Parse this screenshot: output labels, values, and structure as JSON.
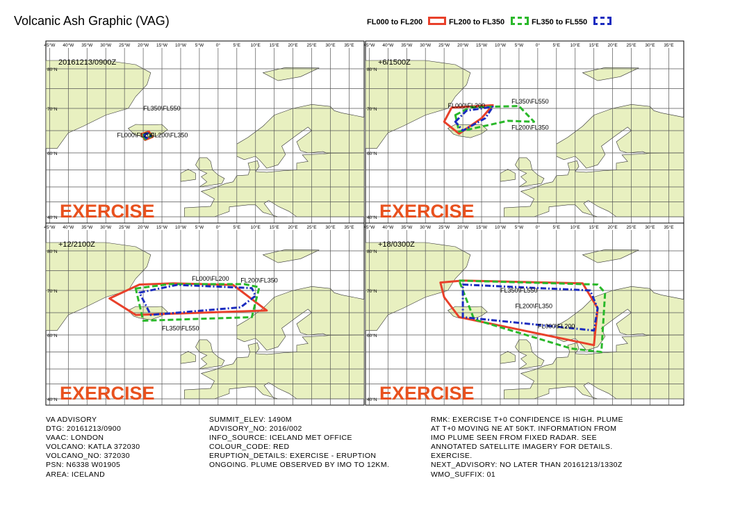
{
  "title": "Volcanic Ash Graphic (VAG)",
  "legend": [
    {
      "label": "FL000 to FL200",
      "color": "#e8402a",
      "style": "solid"
    },
    {
      "label": "FL200 to FL350",
      "color": "#2ab82a",
      "style": "dash"
    },
    {
      "label": "FL350 to FL550",
      "color": "#1a2bbf",
      "style": "dashdot"
    }
  ],
  "colors": {
    "land": "#e8f0c0",
    "sea": "#ffffff",
    "grid": "#555555",
    "exercise": "#e8511e"
  },
  "longitude_ticks": [
    "45°W",
    "40°W",
    "35°W",
    "30°W",
    "25°W",
    "20°W",
    "15°W",
    "10°W",
    "5°W",
    "0°",
    "5°E",
    "10°E",
    "15°E",
    "20°E",
    "25°E",
    "30°E",
    "35°E"
  ],
  "latitude_ticks": [
    "80°N",
    "70°N",
    "60°N",
    "40°N"
  ],
  "panels": [
    {
      "time": "20161213/0900Z",
      "watermark": "EXERCISE",
      "labels": [
        {
          "text": "FL350\\FL550",
          "lon": -20,
          "lat": 69.5
        },
        {
          "text": "FL000\\FL200",
          "lon": -27,
          "lat": 63.5
        },
        {
          "text": "FL200\\FL350",
          "lon": -18,
          "lat": 63.5
        }
      ],
      "plumes": [
        {
          "level": "FL000 to FL200",
          "points": [
            [
              -20.5,
              64.2
            ],
            [
              -18.5,
              64.8
            ],
            [
              -17.5,
              63.6
            ],
            [
              -19.5,
              62.9
            ]
          ]
        },
        {
          "level": "FL200 to FL350",
          "points": [
            [
              -20.2,
              64.0
            ],
            [
              -18.6,
              64.6
            ],
            [
              -17.8,
              63.7
            ],
            [
              -19.4,
              63.1
            ]
          ]
        },
        {
          "level": "FL350 to FL550",
          "points": [
            [
              -19.9,
              64.0
            ],
            [
              -18.8,
              64.4
            ],
            [
              -18.1,
              63.8
            ],
            [
              -19.2,
              63.3
            ]
          ]
        }
      ]
    },
    {
      "time": "+6/1500Z",
      "watermark": "EXERCISE",
      "labels": [
        {
          "text": "FL000\\FL200",
          "lon": -24,
          "lat": 70.2
        },
        {
          "text": "FL350\\FL550",
          "lon": -7,
          "lat": 71.2
        },
        {
          "text": "FL200\\FL350",
          "lon": -7,
          "lat": 65.2
        }
      ],
      "plumes": [
        {
          "level": "FL000 to FL200",
          "points": [
            [
              -25,
              67.0
            ],
            [
              -23,
              70.2
            ],
            [
              -12,
              70.8
            ],
            [
              -15,
              67.8
            ],
            [
              -21,
              64.3
            ]
          ]
        },
        {
          "level": "FL200 to FL350",
          "points": [
            [
              -22,
              68.5
            ],
            [
              -18,
              70.3
            ],
            [
              -5,
              70.6
            ],
            [
              -1,
              67.0
            ],
            [
              -8,
              67.2
            ],
            [
              -21,
              64.8
            ]
          ]
        },
        {
          "level": "FL350 to FL550",
          "points": [
            [
              -22,
              67.0
            ],
            [
              -19,
              69.5
            ],
            [
              -12,
              70.4
            ],
            [
              -14,
              67.8
            ],
            [
              -20,
              65.0
            ]
          ]
        }
      ]
    },
    {
      "time": "+12/2100Z",
      "watermark": "EXERCISE",
      "labels": [
        {
          "text": "FL000\\FL200",
          "lon": -7,
          "lat": 72.5
        },
        {
          "text": "FL200\\FL350",
          "lon": 6,
          "lat": 72.0
        },
        {
          "text": "FL350\\FL550",
          "lon": -15,
          "lat": 61.0
        }
      ],
      "plumes": [
        {
          "level": "FL000 to FL200",
          "points": [
            [
              -29,
              68.2
            ],
            [
              -21,
              71.5
            ],
            [
              -12,
              71.8
            ],
            [
              4,
              71.4
            ],
            [
              13,
              65.5
            ],
            [
              -22,
              64.5
            ]
          ]
        },
        {
          "level": "FL200 to FL350",
          "points": [
            [
              -22,
              70.5
            ],
            [
              -13,
              71.6
            ],
            [
              7,
              71.6
            ],
            [
              11,
              70.8
            ],
            [
              9,
              64.0
            ],
            [
              -20,
              63.2
            ]
          ]
        },
        {
          "level": "FL350 to FL550",
          "points": [
            [
              -21,
              69.5
            ],
            [
              -11,
              71.4
            ],
            [
              9,
              70.6
            ],
            [
              10,
              68.8
            ],
            [
              6,
              66.2
            ],
            [
              -18,
              64.5
            ]
          ]
        }
      ]
    },
    {
      "time": "+18/0300Z",
      "watermark": "EXERCISE",
      "labels": [
        {
          "text": "FL350\\FL550",
          "lon": -10,
          "lat": 69.5
        },
        {
          "text": "FL200\\FL350",
          "lon": -6,
          "lat": 66.0
        },
        {
          "text": "FL000\\FL200",
          "lon": 0,
          "lat": 61.5
        }
      ],
      "plumes": [
        {
          "level": "FL000 to FL200",
          "points": [
            [
              -26,
              72.0
            ],
            [
              -20,
              72.5
            ],
            [
              12,
              71.8
            ],
            [
              16,
              66.0
            ],
            [
              15,
              57.0
            ],
            [
              -21,
              64.0
            ],
            [
              -25,
              68.5
            ]
          ]
        },
        {
          "level": "FL200 to FL350",
          "points": [
            [
              -21,
              72.5
            ],
            [
              16,
              71.5
            ],
            [
              18,
              69.5
            ],
            [
              17,
              55.0
            ],
            [
              9,
              56.0
            ],
            [
              -17,
              63.5
            ]
          ]
        },
        {
          "level": "FL350 to FL550",
          "points": [
            [
              -20,
              71.5
            ],
            [
              14,
              70.0
            ],
            [
              16,
              66.0
            ],
            [
              15,
              61.0
            ],
            [
              -20,
              64.0
            ]
          ]
        }
      ]
    }
  ],
  "advisory_col1": [
    "VA ADVISORY",
    "DTG: 20161213/0900",
    "VAAC: LONDON",
    "VOLCANO: KATLA 372030",
    "VOLCANO_NO: 372030",
    "PSN: N6338 W01905",
    "AREA: ICELAND"
  ],
  "advisory_col2": [
    "SUMMIT_ELEV: 1490M",
    "ADVISORY_NO: 2016/002",
    "INFO_SOURCE: ICELAND MET OFFICE",
    "COLOUR_CODE: RED",
    "ERUPTION_DETAILS: EXERCISE - ERUPTION",
    "ONGOING. PLUME OBSERVED BY IMO TO 12KM."
  ],
  "advisory_col3": [
    "RMK: EXERCISE T+0 CONFIDENCE IS HIGH. PLUME",
    "AT T+0 MOVING NE AT 50KT. INFORMATION FROM",
    "IMO PLUME SEEN FROM FIXED RADAR. SEE",
    "ANNOTATED SATELLITE IMAGERY FOR DETAILS.",
    "EXERCISE.",
    "NEXT_ADVISORY: NO LATER THAN 20161213/1330Z",
    "WMO_SUFFIX: 01"
  ]
}
